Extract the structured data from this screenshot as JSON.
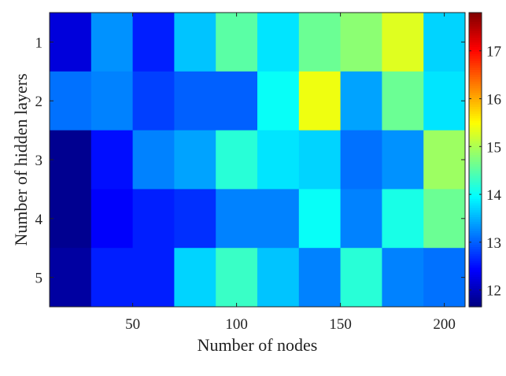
{
  "chart_data": {
    "type": "heatmap",
    "xlabel": "Number of nodes",
    "ylabel": "Number of hidden layers",
    "x": [
      20,
      40,
      60,
      80,
      100,
      120,
      140,
      160,
      180,
      200
    ],
    "y": [
      1,
      2,
      3,
      4,
      5
    ],
    "xticks": [
      50,
      100,
      150,
      200
    ],
    "yticks": [
      1,
      2,
      3,
      4,
      5
    ],
    "xlim": [
      10,
      210
    ],
    "ylim": [
      0.5,
      5.5
    ],
    "colorbar": {
      "colormap": "jet",
      "range": [
        11.65,
        17.8
      ],
      "ticks": [
        12,
        13,
        14,
        15,
        16,
        17
      ],
      "placement": "right"
    },
    "values": [
      [
        12.2,
        13.3,
        12.6,
        13.6,
        14.5,
        13.8,
        14.6,
        14.8,
        15.3,
        13.7
      ],
      [
        13.1,
        13.2,
        12.8,
        13.0,
        13.0,
        14.0,
        15.4,
        13.4,
        14.6,
        13.8
      ],
      [
        11.75,
        12.5,
        13.2,
        13.4,
        14.2,
        13.8,
        13.7,
        13.1,
        13.3,
        14.9
      ],
      [
        11.75,
        12.4,
        12.6,
        12.7,
        13.2,
        13.2,
        14.0,
        13.2,
        14.1,
        14.6
      ],
      [
        11.85,
        12.6,
        12.6,
        13.7,
        14.3,
        13.6,
        13.2,
        14.2,
        13.2,
        13.1
      ]
    ]
  }
}
